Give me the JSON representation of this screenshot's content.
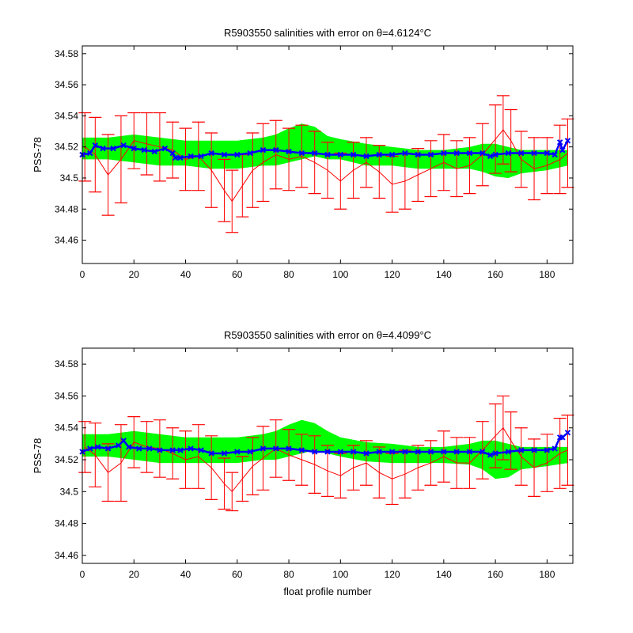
{
  "chart_data": [
    {
      "type": "line",
      "title": "R5903550 salinities with error on θ=4.6124°C",
      "xlabel": "",
      "ylabel": "PSS-78",
      "xlim": [
        0,
        190
      ],
      "ylim": [
        34.445,
        34.585
      ],
      "x_ticks": [
        0,
        20,
        40,
        60,
        80,
        100,
        120,
        140,
        160,
        180
      ],
      "y_ticks": [
        34.46,
        34.48,
        34.5,
        34.52,
        34.54,
        34.56,
        34.58
      ],
      "y_tick_labels": [
        "34.46",
        "34.48",
        "34.5",
        "34.52",
        "34.54",
        "34.56",
        "34.58"
      ],
      "series": [
        {
          "color": "#ff0000",
          "style": "line-with-errorbars",
          "x": [
            1,
            5,
            10,
            15,
            20,
            25,
            30,
            35,
            40,
            45,
            50,
            55,
            58,
            62,
            66,
            70,
            75,
            80,
            85,
            90,
            95,
            100,
            105,
            110,
            115,
            120,
            125,
            130,
            135,
            140,
            145,
            150,
            155,
            160,
            163,
            166,
            170,
            175,
            180,
            185,
            188
          ],
          "y": [
            34.52,
            34.515,
            34.502,
            34.512,
            34.524,
            34.522,
            34.52,
            34.518,
            34.512,
            34.514,
            34.505,
            34.492,
            34.485,
            34.495,
            34.505,
            34.51,
            34.515,
            34.512,
            34.514,
            34.51,
            34.505,
            34.498,
            34.505,
            34.51,
            34.504,
            34.496,
            34.498,
            34.502,
            34.506,
            34.51,
            34.506,
            34.508,
            34.515,
            34.525,
            34.531,
            34.524,
            34.512,
            34.506,
            34.508,
            34.512,
            34.516
          ],
          "err": [
            0.022,
            0.024,
            0.026,
            0.028,
            0.018,
            0.02,
            0.022,
            0.018,
            0.02,
            0.022,
            0.024,
            0.02,
            0.02,
            0.02,
            0.024,
            0.025,
            0.022,
            0.02,
            0.02,
            0.02,
            0.018,
            0.018,
            0.018,
            0.016,
            0.017,
            0.018,
            0.018,
            0.017,
            0.018,
            0.018,
            0.018,
            0.018,
            0.02,
            0.022,
            0.022,
            0.02,
            0.018,
            0.02,
            0.018,
            0.022,
            0.022
          ]
        },
        {
          "color": "#00ff00",
          "style": "band",
          "x": [
            0,
            10,
            20,
            30,
            40,
            50,
            60,
            70,
            75,
            80,
            85,
            90,
            95,
            100,
            110,
            120,
            130,
            140,
            150,
            155,
            160,
            165,
            170,
            180,
            188
          ],
          "lower": [
            34.512,
            34.512,
            34.51,
            34.508,
            34.508,
            34.506,
            34.506,
            34.508,
            34.508,
            34.51,
            34.512,
            34.514,
            34.512,
            34.512,
            34.508,
            34.508,
            34.506,
            34.506,
            34.506,
            34.504,
            34.501,
            34.5,
            34.503,
            34.505,
            34.508
          ],
          "upper": [
            34.526,
            34.526,
            34.528,
            34.526,
            34.524,
            34.524,
            34.524,
            34.526,
            34.528,
            34.532,
            34.535,
            34.533,
            34.527,
            34.525,
            34.522,
            34.52,
            34.518,
            34.518,
            34.52,
            34.522,
            34.522,
            34.52,
            34.518,
            34.518,
            34.518
          ]
        },
        {
          "color": "#0000ff",
          "style": "line-markers",
          "x": [
            0,
            3,
            5,
            8,
            12,
            16,
            20,
            24,
            28,
            32,
            35,
            36,
            38,
            42,
            46,
            50,
            55,
            60,
            65,
            70,
            75,
            80,
            85,
            90,
            95,
            100,
            105,
            110,
            115,
            120,
            125,
            130,
            135,
            140,
            145,
            150,
            155,
            158,
            160,
            165,
            170,
            175,
            180,
            183,
            185,
            186,
            188
          ],
          "y": [
            34.515,
            34.516,
            34.521,
            34.519,
            34.519,
            34.521,
            34.519,
            34.518,
            34.517,
            34.519,
            34.516,
            34.513,
            34.513,
            34.514,
            34.514,
            34.516,
            34.515,
            34.515,
            34.516,
            34.518,
            34.518,
            34.517,
            34.516,
            34.516,
            34.515,
            34.515,
            34.515,
            34.514,
            34.515,
            34.515,
            34.516,
            34.515,
            34.515,
            34.516,
            34.516,
            34.516,
            34.516,
            34.514,
            34.515,
            34.516,
            34.516,
            34.516,
            34.516,
            34.515,
            34.523,
            34.518,
            34.524
          ]
        }
      ]
    },
    {
      "type": "line",
      "title": "R5903550 salinities with error on θ=4.4099°C",
      "xlabel": "float profile number",
      "ylabel": "PSS-78",
      "xlim": [
        0,
        190
      ],
      "ylim": [
        34.455,
        34.59
      ],
      "x_ticks": [
        0,
        20,
        40,
        60,
        80,
        100,
        120,
        140,
        160,
        180
      ],
      "y_ticks": [
        34.46,
        34.48,
        34.5,
        34.52,
        34.54,
        34.56,
        34.58
      ],
      "y_tick_labels": [
        "34.46",
        "34.48",
        "34.5",
        "34.52",
        "34.54",
        "34.56",
        "34.58"
      ],
      "series": [
        {
          "color": "#ff0000",
          "style": "line-with-errorbars",
          "x": [
            1,
            5,
            10,
            15,
            20,
            25,
            30,
            35,
            40,
            45,
            50,
            55,
            58,
            62,
            66,
            70,
            75,
            80,
            85,
            90,
            95,
            100,
            105,
            110,
            115,
            120,
            125,
            130,
            135,
            140,
            145,
            150,
            155,
            160,
            163,
            166,
            170,
            175,
            180,
            185,
            188
          ],
          "y": [
            34.528,
            34.523,
            34.512,
            34.518,
            34.531,
            34.528,
            34.527,
            34.524,
            34.52,
            34.522,
            34.515,
            34.505,
            34.5,
            34.508,
            34.516,
            34.521,
            34.527,
            34.523,
            34.52,
            34.517,
            34.513,
            34.51,
            34.515,
            34.518,
            34.512,
            34.508,
            34.511,
            34.515,
            34.518,
            34.522,
            34.518,
            34.518,
            34.526,
            34.535,
            34.54,
            34.532,
            34.522,
            34.515,
            34.518,
            34.524,
            34.526
          ],
          "err": [
            0.016,
            0.02,
            0.018,
            0.024,
            0.016,
            0.016,
            0.018,
            0.016,
            0.018,
            0.02,
            0.02,
            0.016,
            0.012,
            0.014,
            0.018,
            0.02,
            0.018,
            0.016,
            0.016,
            0.018,
            0.016,
            0.014,
            0.014,
            0.014,
            0.016,
            0.016,
            0.015,
            0.014,
            0.014,
            0.016,
            0.016,
            0.016,
            0.018,
            0.02,
            0.02,
            0.018,
            0.018,
            0.018,
            0.018,
            0.022,
            0.022
          ]
        },
        {
          "color": "#00ff00",
          "style": "band",
          "x": [
            0,
            10,
            20,
            30,
            40,
            50,
            60,
            70,
            75,
            80,
            85,
            90,
            95,
            100,
            110,
            120,
            130,
            140,
            150,
            155,
            160,
            165,
            170,
            180,
            188
          ],
          "lower": [
            34.522,
            34.522,
            34.52,
            34.518,
            34.518,
            34.518,
            34.518,
            34.52,
            34.52,
            34.522,
            34.524,
            34.526,
            34.524,
            34.522,
            34.519,
            34.518,
            34.518,
            34.518,
            34.517,
            34.514,
            34.508,
            34.509,
            34.514,
            34.516,
            34.518
          ],
          "upper": [
            34.536,
            34.536,
            34.538,
            34.536,
            34.534,
            34.534,
            34.534,
            34.536,
            34.538,
            34.542,
            34.545,
            34.543,
            34.538,
            34.534,
            34.531,
            34.53,
            34.528,
            34.528,
            34.53,
            34.532,
            34.532,
            34.53,
            34.528,
            34.528,
            34.528
          ]
        },
        {
          "color": "#0000ff",
          "style": "line-markers",
          "x": [
            0,
            3,
            6,
            10,
            14,
            16,
            18,
            22,
            26,
            30,
            35,
            38,
            42,
            46,
            50,
            55,
            60,
            65,
            70,
            75,
            80,
            85,
            90,
            95,
            100,
            105,
            110,
            115,
            120,
            125,
            130,
            135,
            140,
            145,
            150,
            155,
            158,
            160,
            165,
            170,
            175,
            180,
            183,
            185,
            186,
            188
          ],
          "y": [
            34.525,
            34.527,
            34.528,
            34.527,
            34.529,
            34.532,
            34.528,
            34.527,
            34.527,
            34.526,
            34.526,
            34.526,
            34.527,
            34.526,
            34.524,
            34.524,
            34.525,
            34.525,
            34.527,
            34.527,
            34.527,
            34.526,
            34.525,
            34.525,
            34.525,
            34.525,
            34.524,
            34.525,
            34.525,
            34.525,
            34.525,
            34.525,
            34.525,
            34.525,
            34.525,
            34.525,
            34.523,
            34.524,
            34.525,
            34.526,
            34.526,
            34.526,
            34.527,
            34.534,
            34.534,
            34.537
          ]
        }
      ]
    }
  ]
}
